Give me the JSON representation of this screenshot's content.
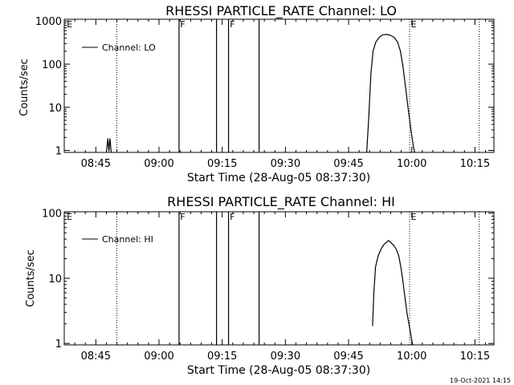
{
  "footer": {
    "timestamp": "19-Oct-2021 14:15"
  },
  "chart_data": [
    {
      "type": "line",
      "title": "RHESSI PARTICLE_RATE Channel: LO",
      "xlabel": "Start Time (28-Aug-05 08:37:30)",
      "ylabel": "Counts/sec",
      "yscale": "log",
      "ylim": [
        0.9,
        1100
      ],
      "xlim": [
        "08:37:30",
        "10:19:30"
      ],
      "xticks": [
        "08:45",
        "09:00",
        "09:15",
        "09:30",
        "09:45",
        "10:00",
        "10:15"
      ],
      "xtick_minutes": [
        7.5,
        22.5,
        37.5,
        52.5,
        67.5,
        82.5,
        97.5
      ],
      "yticks": [
        "1",
        "10",
        "100",
        "1000"
      ],
      "ytick_values": [
        1,
        10,
        100,
        1000
      ],
      "grid": false,
      "legend": {
        "position": "top-left",
        "entries": [
          "Channel: LO"
        ]
      },
      "solid_lines": [
        27.25,
        36.15,
        39.0,
        46.25
      ],
      "dotted_lines": [
        12.5,
        82.0,
        98.5
      ],
      "markers": [
        {
          "label": "E",
          "x": 0.4
        },
        {
          "label": "F",
          "x": 27.3
        },
        {
          "label": "F",
          "x": 39.1
        },
        {
          "label": "E",
          "x": 82.1
        }
      ],
      "series": [
        {
          "name": "Channel: LO",
          "segments": [
            [
              [
                10.0,
                0.9
              ],
              [
                10.35,
                1.9
              ],
              [
                10.6,
                0.95
              ],
              [
                10.85,
                1.9
              ],
              [
                11.15,
                0.9
              ]
            ],
            [
              [
                71.8,
                0.9
              ],
              [
                72.3,
                6
              ],
              [
                72.8,
                60
              ],
              [
                73.3,
                200
              ],
              [
                74.0,
                330
              ],
              [
                74.8,
                420
              ],
              [
                75.6,
                480
              ],
              [
                76.5,
                490
              ],
              [
                77.4,
                470
              ],
              [
                78.3,
                420
              ],
              [
                79.1,
                330
              ],
              [
                79.8,
                200
              ],
              [
                80.4,
                90
              ],
              [
                81.0,
                30
              ],
              [
                81.6,
                10
              ],
              [
                82.3,
                3
              ],
              [
                82.9,
                1.2
              ],
              [
                83.2,
                0.9
              ]
            ]
          ]
        }
      ]
    },
    {
      "type": "line",
      "title": "RHESSI PARTICLE_RATE Channel: HI",
      "xlabel": "Start Time (28-Aug-05 08:37:30)",
      "ylabel": "Counts/sec",
      "yscale": "log",
      "ylim": [
        0.95,
        105
      ],
      "xlim": [
        "08:37:30",
        "10:19:30"
      ],
      "xticks": [
        "08:45",
        "09:00",
        "09:15",
        "09:30",
        "09:45",
        "10:00",
        "10:15"
      ],
      "xtick_minutes": [
        7.5,
        22.5,
        37.5,
        52.5,
        67.5,
        82.5,
        97.5
      ],
      "yticks": [
        "1",
        "10",
        "100"
      ],
      "ytick_values": [
        1,
        10,
        100
      ],
      "grid": false,
      "legend": {
        "position": "top-left",
        "entries": [
          "Channel: HI"
        ]
      },
      "solid_lines": [
        27.25,
        36.15,
        39.0,
        46.25
      ],
      "dotted_lines": [
        12.5,
        82.0,
        98.5
      ],
      "markers": [
        {
          "label": "E",
          "x": 0.4
        },
        {
          "label": "F",
          "x": 27.3
        },
        {
          "label": "F",
          "x": 39.1
        },
        {
          "label": "E",
          "x": 82.1
        }
      ],
      "series": [
        {
          "name": "Channel: HI",
          "segments": [
            [
              [
                73.2,
                1.85
              ],
              [
                73.5,
                6
              ],
              [
                73.9,
                15
              ],
              [
                74.5,
                22
              ],
              [
                75.2,
                28
              ],
              [
                75.9,
                33
              ],
              [
                76.5,
                36
              ],
              [
                77.0,
                38
              ],
              [
                77.6,
                35
              ],
              [
                78.2,
                32
              ],
              [
                78.8,
                28
              ],
              [
                79.4,
                22
              ],
              [
                79.9,
                15
              ],
              [
                80.4,
                9
              ],
              [
                80.9,
                5
              ],
              [
                81.4,
                2.8
              ],
              [
                82.1,
                1.6
              ],
              [
                82.5,
                1.1
              ],
              [
                82.7,
                0.95
              ]
            ]
          ]
        }
      ]
    }
  ]
}
